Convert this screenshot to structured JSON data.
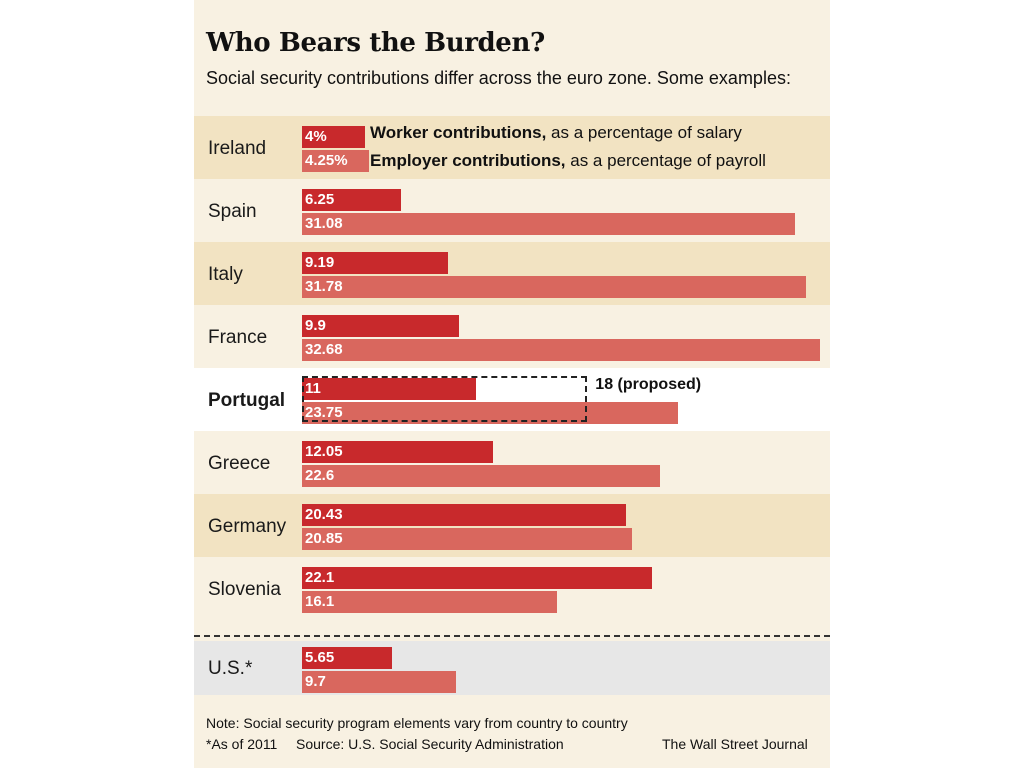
{
  "title": "Who Bears the Burden?",
  "subtitle": "Social security contributions differ across the euro zone.  Some examples:",
  "legend": {
    "worker_bold": "Worker contributions,",
    "worker_rest": " as a percentage of salary",
    "employer_bold": "Employer contributions,",
    "employer_rest": " as a percentage of payroll"
  },
  "colors": {
    "worker": "#c8292c",
    "employer": "#d9675e",
    "band_dark": "#f2e3c2",
    "band_light": "#f8f1e2",
    "band_highlight": "#ffffff",
    "band_us": "#e7e7e7"
  },
  "chart_data": {
    "type": "bar",
    "orientation": "horizontal",
    "title": "Who Bears the Burden?",
    "subtitle": "Social security contributions differ across the euro zone.  Some examples:",
    "categories": [
      "Ireland",
      "Spain",
      "Italy",
      "France",
      "Portugal",
      "Greece",
      "Germany",
      "Slovenia",
      "U.S.*"
    ],
    "series": [
      {
        "name": "Worker contributions, as a percentage of salary",
        "values": [
          4,
          6.25,
          9.19,
          9.9,
          11,
          12.05,
          20.43,
          22.1,
          5.65
        ],
        "labels": [
          "4%",
          "6.25",
          "9.19",
          "9.9",
          "11",
          "12.05",
          "20.43",
          "22.1",
          "5.65"
        ]
      },
      {
        "name": "Employer contributions, as a percentage of payroll",
        "values": [
          4.25,
          31.08,
          31.78,
          32.68,
          23.75,
          22.6,
          20.85,
          16.1,
          9.7
        ],
        "labels": [
          "4.25%",
          "31.08",
          "31.78",
          "32.68",
          "23.75",
          "22.6",
          "20.85",
          "16.1",
          "9.7"
        ]
      }
    ],
    "highlight_category": "Portugal",
    "annotation": {
      "category": "Portugal",
      "series": "Worker contributions, as a percentage of salary",
      "value": 18,
      "label": "18 (proposed)"
    },
    "xlim": [
      0,
      32.68
    ]
  },
  "footer": {
    "note": "Note: Social security program elements vary from country to country",
    "asof": "*As of 2011",
    "source": "Source: U.S. Social Security Administration",
    "credit": "The Wall Street Journal"
  }
}
